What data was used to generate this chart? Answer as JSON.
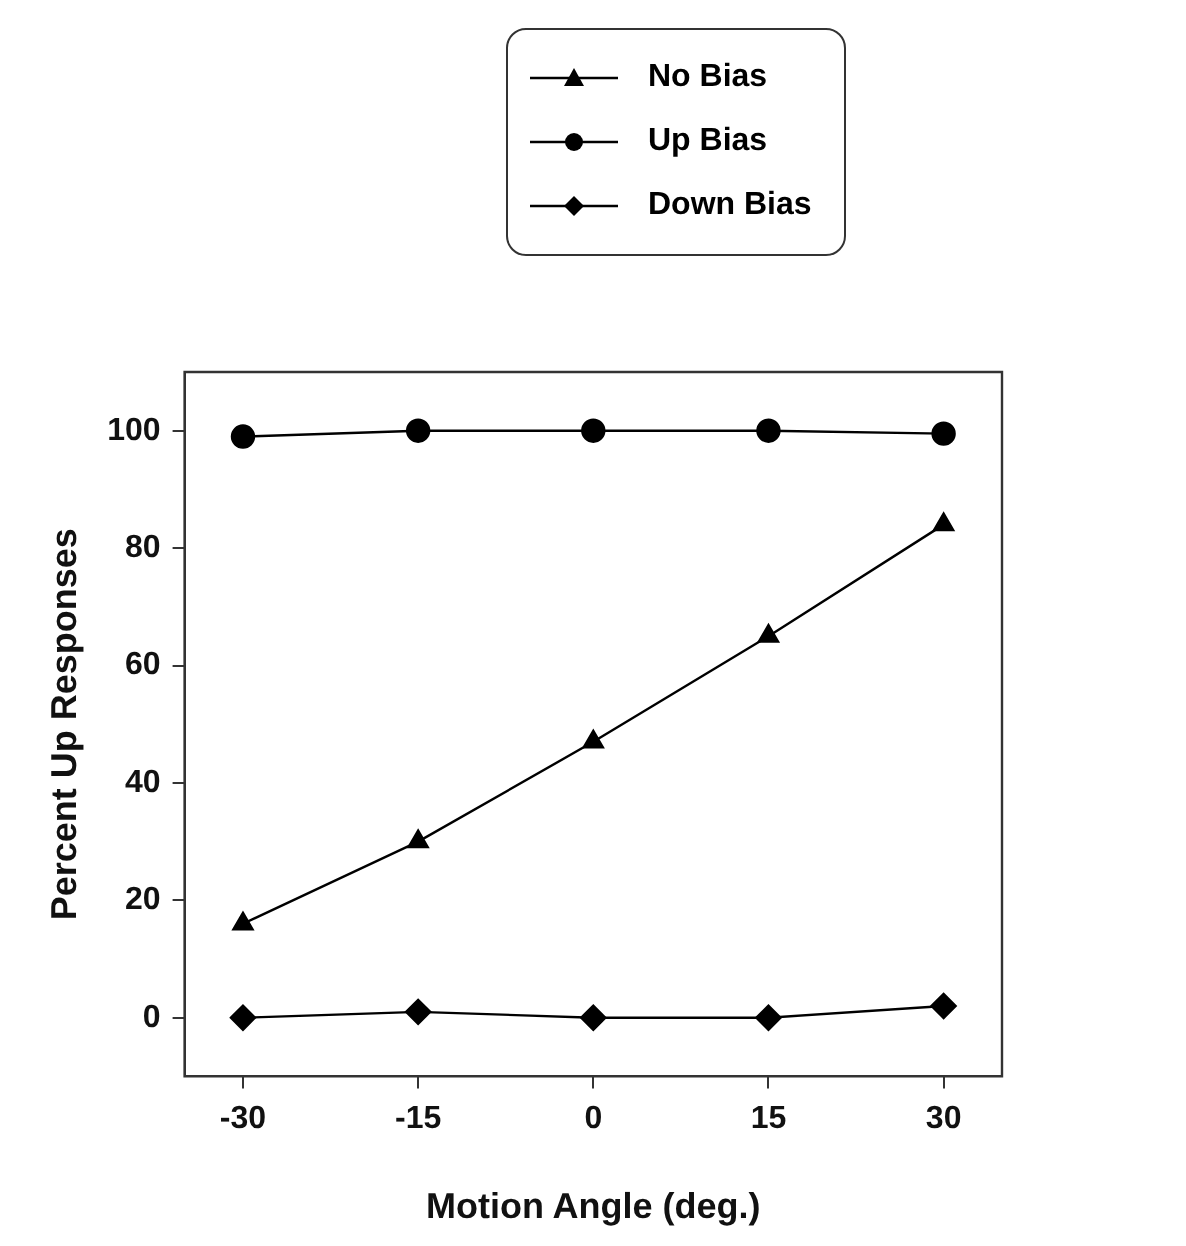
{
  "chart_data": {
    "type": "line",
    "xlabel": "Motion Angle (deg.)",
    "ylabel": "Percent Up Responses",
    "x": [
      -30,
      -15,
      0,
      15,
      30
    ],
    "series": [
      {
        "name": "No Bias",
        "color": "#000000",
        "marker": "triangle",
        "values": [
          16,
          30,
          47,
          65,
          84
        ]
      },
      {
        "name": "Up Bias",
        "color": "#000000",
        "marker": "circle",
        "values": [
          99,
          100,
          100,
          100,
          99.5
        ]
      },
      {
        "name": "Down Bias",
        "color": "#000000",
        "marker": "diamond",
        "values": [
          0,
          1,
          0,
          0,
          2
        ]
      }
    ],
    "xlim": [
      -35,
      35
    ],
    "xticks": [
      -30,
      -15,
      0,
      15,
      30
    ],
    "ylim": [
      -10,
      110
    ],
    "yticks": [
      0,
      20,
      40,
      60,
      80,
      100
    ],
    "grid": false,
    "legend": "top",
    "line_style": "solid"
  }
}
